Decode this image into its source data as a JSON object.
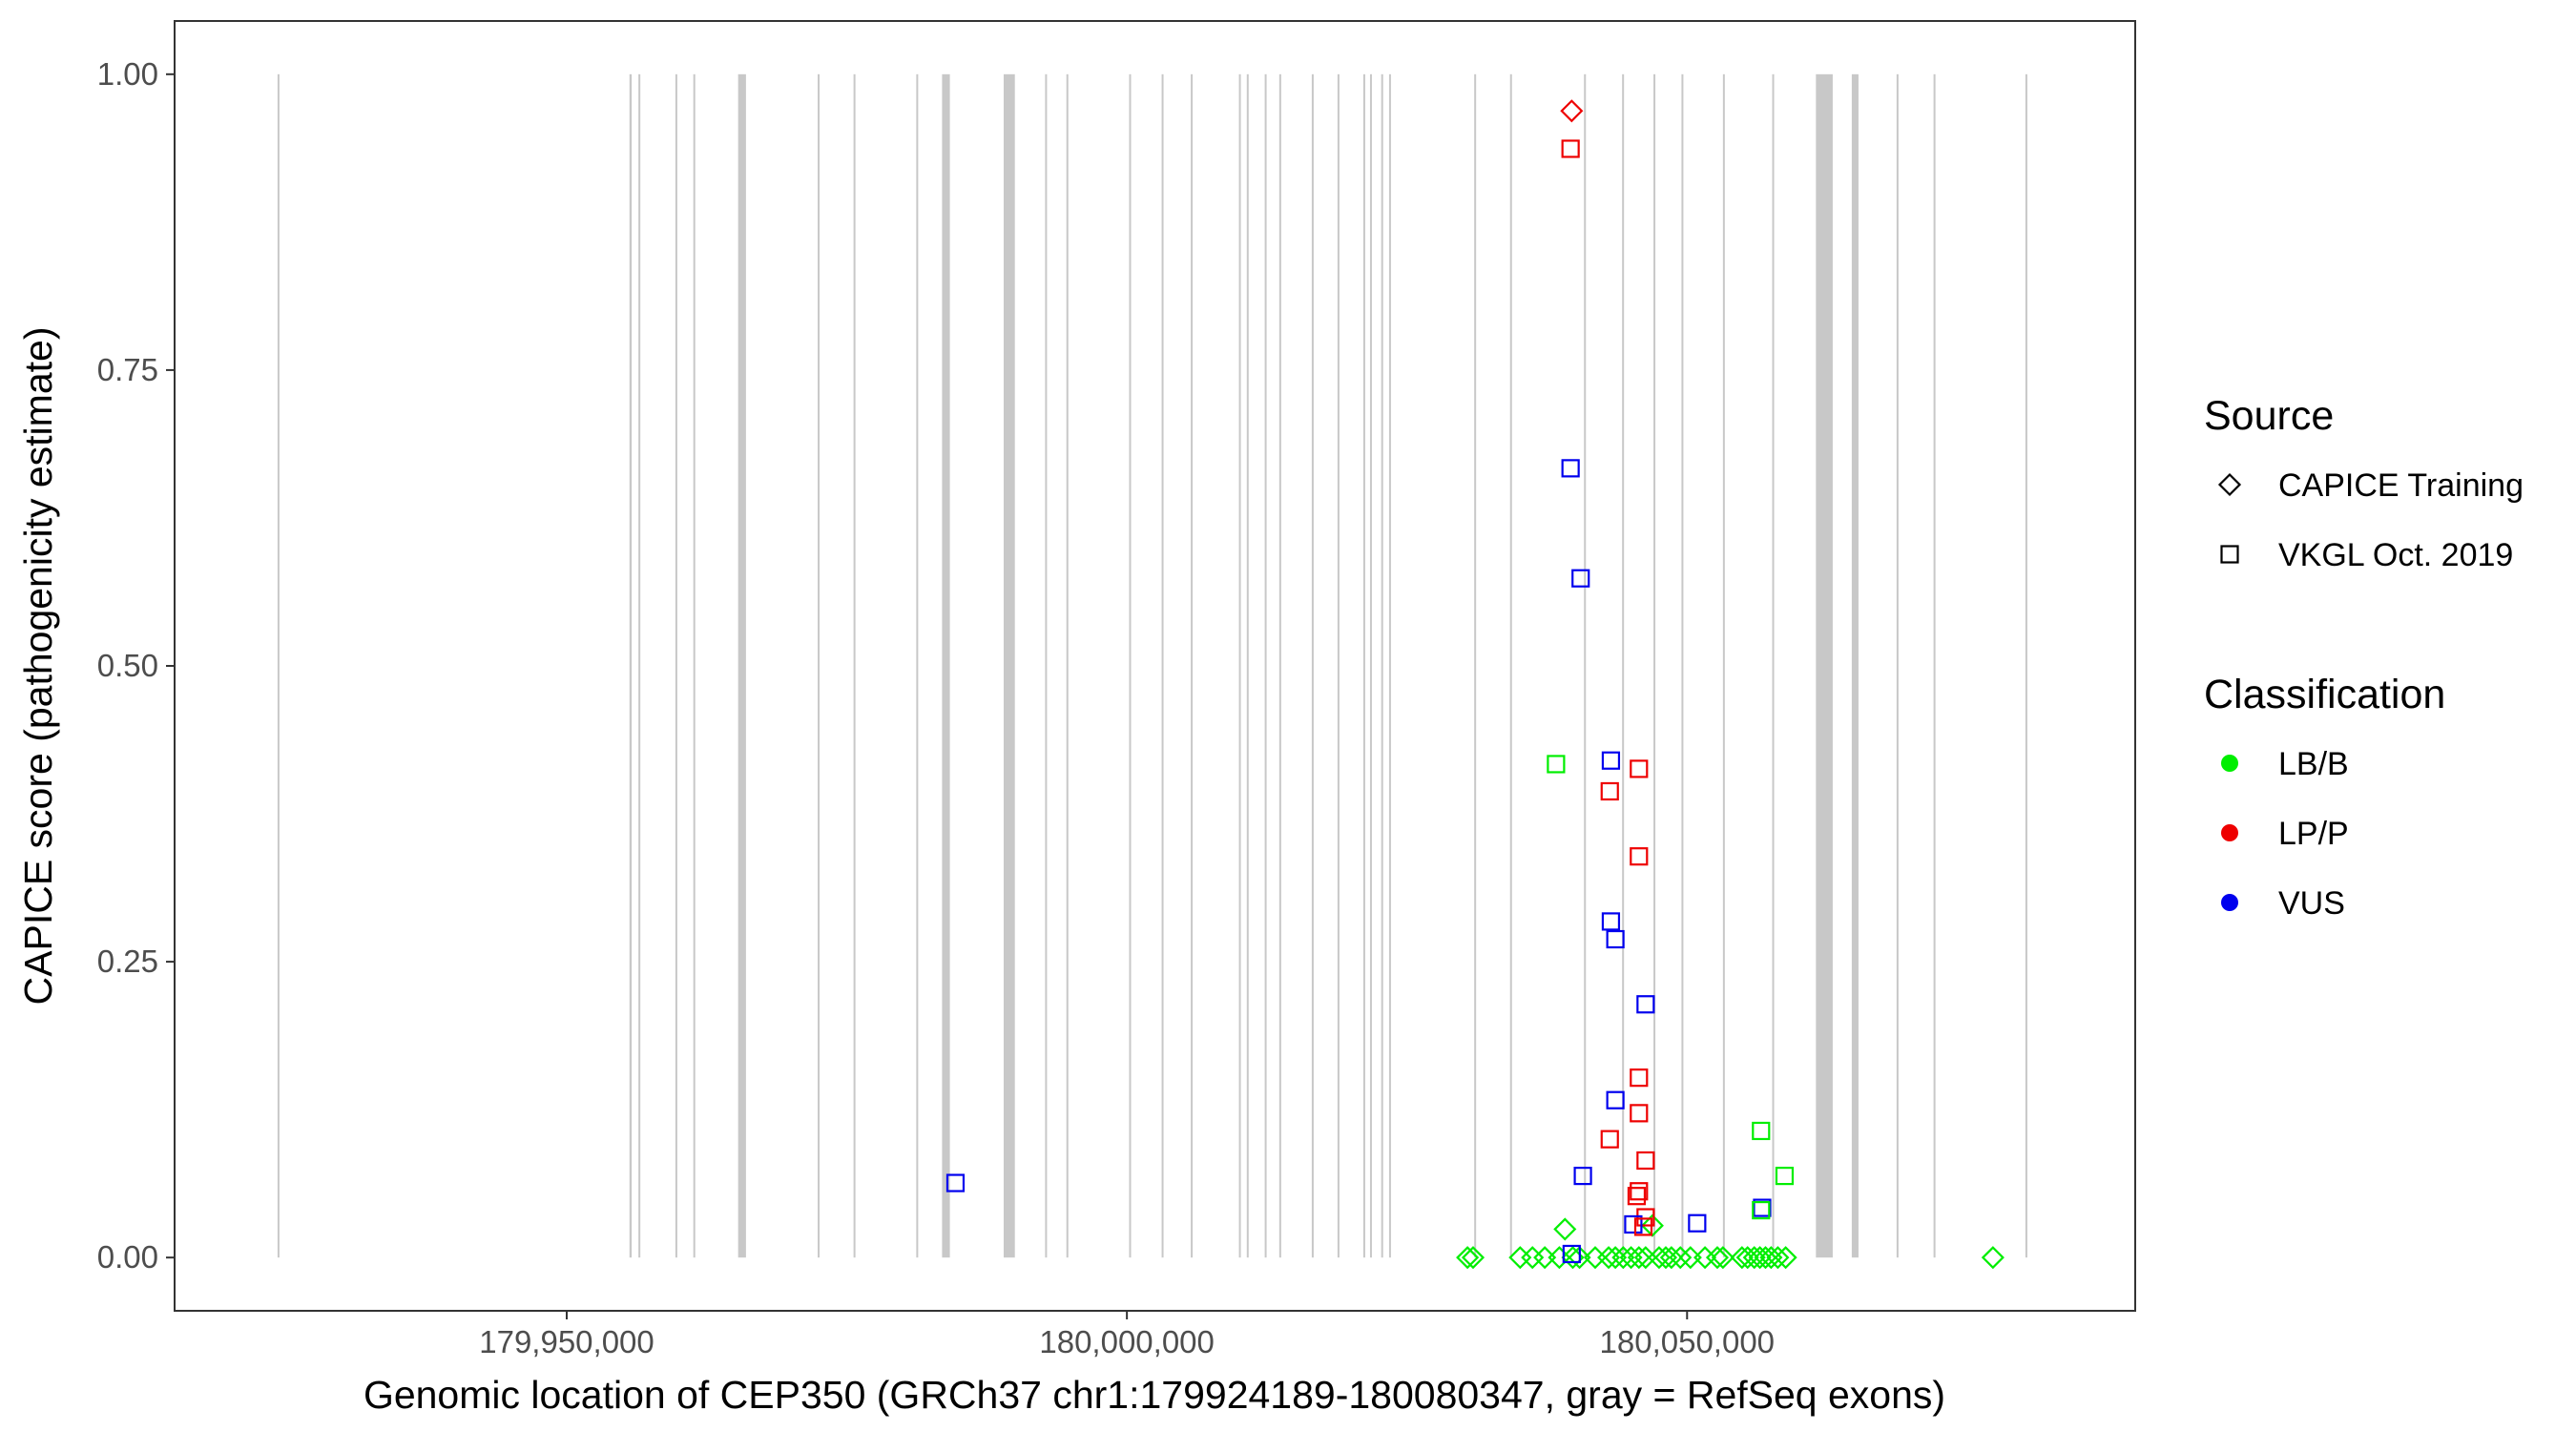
{
  "chart_data": {
    "type": "scatter",
    "xlabel": "Genomic location of CEP350 (GRCh37 chr1:179924189-180080347, gray = RefSeq exons)",
    "ylabel": "CAPICE score (pathogenicity estimate)",
    "xlim": [
      179915000,
      180090000
    ],
    "ylim": [
      -0.045,
      1.045
    ],
    "x_ticks": [
      {
        "value": 179950000,
        "label": "179,950,000"
      },
      {
        "value": 180000000,
        "label": "180,000,000"
      },
      {
        "value": 180050000,
        "label": "180,050,000"
      }
    ],
    "y_ticks": [
      {
        "value": 0.0,
        "label": "0.00"
      },
      {
        "value": 0.25,
        "label": "0.25"
      },
      {
        "value": 0.5,
        "label": "0.50"
      },
      {
        "value": 0.75,
        "label": "0.75"
      },
      {
        "value": 1.0,
        "label": "1.00"
      }
    ],
    "grid": false,
    "legend_position": "right",
    "exons": [
      {
        "start": 179924189,
        "end": 179924350
      },
      {
        "start": 179955600,
        "end": 179955800
      },
      {
        "start": 179956400,
        "end": 179956550
      },
      {
        "start": 179959700,
        "end": 179959850
      },
      {
        "start": 179961300,
        "end": 179961450
      },
      {
        "start": 179965300,
        "end": 179966000
      },
      {
        "start": 179972400,
        "end": 179972550
      },
      {
        "start": 179975600,
        "end": 179975750
      },
      {
        "start": 179981200,
        "end": 179981350
      },
      {
        "start": 179983500,
        "end": 179984200
      },
      {
        "start": 179989000,
        "end": 179990000
      },
      {
        "start": 179992700,
        "end": 179992850
      },
      {
        "start": 179994600,
        "end": 179994750
      },
      {
        "start": 180000200,
        "end": 180000350
      },
      {
        "start": 180003100,
        "end": 180003250
      },
      {
        "start": 180005700,
        "end": 180005850
      },
      {
        "start": 180010000,
        "end": 180010150
      },
      {
        "start": 180010700,
        "end": 180010850
      },
      {
        "start": 180012300,
        "end": 180012450
      },
      {
        "start": 180013600,
        "end": 180013750
      },
      {
        "start": 180016500,
        "end": 180016650
      },
      {
        "start": 180018800,
        "end": 180018950
      },
      {
        "start": 180021100,
        "end": 180021250
      },
      {
        "start": 180021700,
        "end": 180021850
      },
      {
        "start": 180022700,
        "end": 180022850
      },
      {
        "start": 180023400,
        "end": 180023550
      },
      {
        "start": 180031000,
        "end": 180031150
      },
      {
        "start": 180034200,
        "end": 180034350
      },
      {
        "start": 180040800,
        "end": 180040950
      },
      {
        "start": 180044200,
        "end": 180044350
      },
      {
        "start": 180047000,
        "end": 180047150
      },
      {
        "start": 180049500,
        "end": 180049650
      },
      {
        "start": 180053200,
        "end": 180053350
      },
      {
        "start": 180057600,
        "end": 180057750
      },
      {
        "start": 180061500,
        "end": 180063000
      },
      {
        "start": 180064700,
        "end": 180065300
      },
      {
        "start": 180068700,
        "end": 180068850
      },
      {
        "start": 180072000,
        "end": 180072150
      },
      {
        "start": 180080200,
        "end": 180080347
      }
    ],
    "series": [
      {
        "name": "CAPICE Training",
        "shape": "diamond",
        "points": [
          {
            "x": 180030400,
            "y": 0.0,
            "class": "LB/B"
          },
          {
            "x": 180030900,
            "y": 0.0,
            "class": "LB/B"
          },
          {
            "x": 180035100,
            "y": 0.0,
            "class": "LB/B"
          },
          {
            "x": 180036200,
            "y": 0.0,
            "class": "LB/B"
          },
          {
            "x": 180037300,
            "y": 0.0,
            "class": "LB/B"
          },
          {
            "x": 180038600,
            "y": 0.0,
            "class": "LB/B"
          },
          {
            "x": 180039100,
            "y": 0.024,
            "class": "LB/B"
          },
          {
            "x": 180039800,
            "y": 0.0,
            "class": "LB/B"
          },
          {
            "x": 180040400,
            "y": 0.0,
            "class": "LB/B"
          },
          {
            "x": 180039700,
            "y": 0.969,
            "class": "LP/P"
          },
          {
            "x": 180041800,
            "y": 0.0,
            "class": "LB/B"
          },
          {
            "x": 180043000,
            "y": 0.0,
            "class": "LB/B"
          },
          {
            "x": 180043600,
            "y": 0.0,
            "class": "LB/B"
          },
          {
            "x": 180044300,
            "y": 0.0,
            "class": "LB/B"
          },
          {
            "x": 180045000,
            "y": 0.0,
            "class": "LB/B"
          },
          {
            "x": 180045700,
            "y": 0.0,
            "class": "LB/B"
          },
          {
            "x": 180046300,
            "y": 0.0,
            "class": "LB/B"
          },
          {
            "x": 180046900,
            "y": 0.027,
            "class": "LB/B"
          },
          {
            "x": 180047500,
            "y": 0.0,
            "class": "LB/B"
          },
          {
            "x": 180048100,
            "y": 0.0,
            "class": "LB/B"
          },
          {
            "x": 180048600,
            "y": 0.0,
            "class": "LB/B"
          },
          {
            "x": 180049400,
            "y": 0.0,
            "class": "LB/B"
          },
          {
            "x": 180050300,
            "y": 0.0,
            "class": "LB/B"
          },
          {
            "x": 180051600,
            "y": 0.0,
            "class": "LB/B"
          },
          {
            "x": 180052700,
            "y": 0.0,
            "class": "LB/B"
          },
          {
            "x": 180053200,
            "y": 0.0,
            "class": "LB/B"
          },
          {
            "x": 180054900,
            "y": 0.0,
            "class": "LB/B"
          },
          {
            "x": 180055400,
            "y": 0.0,
            "class": "LB/B"
          },
          {
            "x": 180056000,
            "y": 0.0,
            "class": "LB/B"
          },
          {
            "x": 180056500,
            "y": 0.0,
            "class": "LB/B"
          },
          {
            "x": 180057000,
            "y": 0.0,
            "class": "LB/B"
          },
          {
            "x": 180057500,
            "y": 0.0,
            "class": "LB/B"
          },
          {
            "x": 180058100,
            "y": 0.0,
            "class": "LB/B"
          },
          {
            "x": 180058800,
            "y": 0.0,
            "class": "LB/B"
          },
          {
            "x": 180077300,
            "y": 0.0,
            "class": "LB/B"
          }
        ]
      },
      {
        "name": "VKGL Oct. 2019",
        "shape": "square",
        "points": [
          {
            "x": 179984700,
            "y": 0.063,
            "class": "VUS"
          },
          {
            "x": 180038300,
            "y": 0.417,
            "class": "LB/B"
          },
          {
            "x": 180039600,
            "y": 0.937,
            "class": "LP/P"
          },
          {
            "x": 180039600,
            "y": 0.667,
            "class": "VUS"
          },
          {
            "x": 180040500,
            "y": 0.574,
            "class": "VUS"
          },
          {
            "x": 180040700,
            "y": 0.069,
            "class": "VUS"
          },
          {
            "x": 180039700,
            "y": 0.003,
            "class": "VUS"
          },
          {
            "x": 180043200,
            "y": 0.42,
            "class": "VUS"
          },
          {
            "x": 180043100,
            "y": 0.394,
            "class": "LP/P"
          },
          {
            "x": 180043200,
            "y": 0.284,
            "class": "VUS"
          },
          {
            "x": 180043600,
            "y": 0.269,
            "class": "VUS"
          },
          {
            "x": 180043600,
            "y": 0.133,
            "class": "VUS"
          },
          {
            "x": 180043100,
            "y": 0.1,
            "class": "LP/P"
          },
          {
            "x": 180045700,
            "y": 0.413,
            "class": "LP/P"
          },
          {
            "x": 180045700,
            "y": 0.339,
            "class": "LP/P"
          },
          {
            "x": 180046300,
            "y": 0.214,
            "class": "VUS"
          },
          {
            "x": 180045700,
            "y": 0.152,
            "class": "LP/P"
          },
          {
            "x": 180045700,
            "y": 0.122,
            "class": "LP/P"
          },
          {
            "x": 180046300,
            "y": 0.082,
            "class": "LP/P"
          },
          {
            "x": 180045700,
            "y": 0.056,
            "class": "LP/P"
          },
          {
            "x": 180045500,
            "y": 0.052,
            "class": "LP/P"
          },
          {
            "x": 180046300,
            "y": 0.034,
            "class": "LP/P"
          },
          {
            "x": 180045200,
            "y": 0.028,
            "class": "VUS"
          },
          {
            "x": 180046100,
            "y": 0.026,
            "class": "LP/P"
          },
          {
            "x": 180050900,
            "y": 0.029,
            "class": "VUS"
          },
          {
            "x": 180056600,
            "y": 0.107,
            "class": "LB/B"
          },
          {
            "x": 180056700,
            "y": 0.042,
            "class": "VUS"
          },
          {
            "x": 180056600,
            "y": 0.04,
            "class": "LB/B"
          },
          {
            "x": 180058700,
            "y": 0.069,
            "class": "LB/B"
          }
        ]
      }
    ],
    "legend": {
      "source_title": "Source",
      "source_items": [
        {
          "label": "CAPICE Training",
          "shape": "diamond"
        },
        {
          "label": "VKGL Oct. 2019",
          "shape": "square"
        }
      ],
      "classification_title": "Classification",
      "classification_items": [
        {
          "label": "LB/B",
          "color": "#00ee00"
        },
        {
          "label": "LP/P",
          "color": "#ee0000"
        },
        {
          "label": "VUS",
          "color": "#0000ee"
        }
      ]
    },
    "class_colors": {
      "LB/B": "#00ee00",
      "LP/P": "#ee0000",
      "VUS": "#0000ee"
    },
    "exon_color": "#c8c8c8"
  }
}
